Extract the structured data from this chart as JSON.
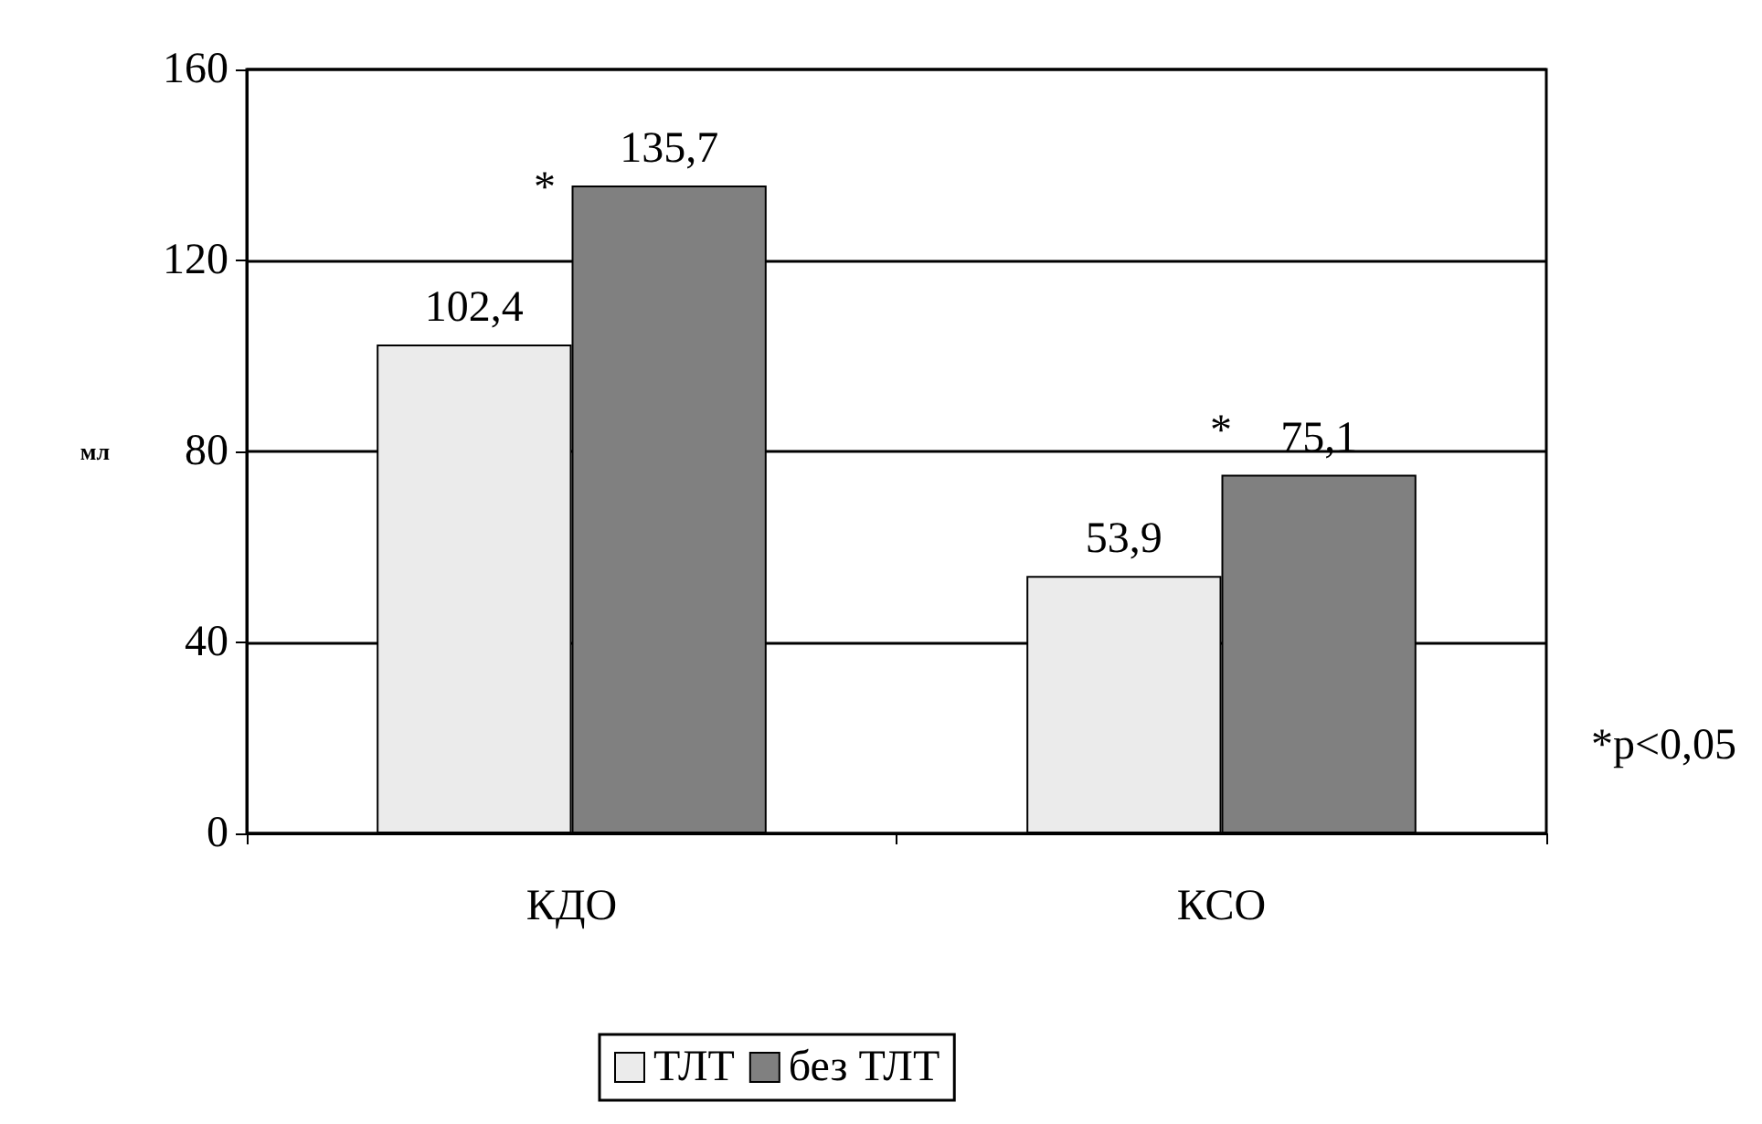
{
  "chart_data": {
    "type": "bar",
    "ylabel": "мл",
    "categories": [
      "КДО",
      "КСО"
    ],
    "series": [
      {
        "name": "ТЛТ",
        "color": "#ebebeb",
        "values": [
          102.4,
          53.9
        ],
        "value_labels": [
          "102,4",
          "53,9"
        ]
      },
      {
        "name": "без ТЛТ",
        "color": "#808080",
        "values": [
          135.7,
          75.1
        ],
        "value_labels": [
          "135,7",
          "75,1"
        ]
      }
    ],
    "ylim": [
      0,
      160
    ],
    "yticks": [
      0,
      40,
      80,
      120,
      160
    ],
    "grid": "y",
    "legend": "bottom",
    "annotations": [
      "*",
      "*",
      "*p<0,05"
    ]
  }
}
